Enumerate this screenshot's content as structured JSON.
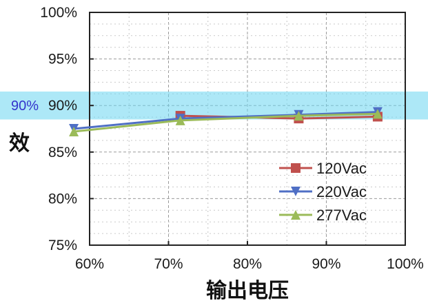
{
  "chart_data": {
    "type": "line",
    "title": "",
    "xlabel": "输出电压",
    "ylabel": "效",
    "x_ticks": [
      "60%",
      "70%",
      "80%",
      "90%",
      "100%"
    ],
    "y_ticks": [
      "75%",
      "80%",
      "85%",
      "90%",
      "95%",
      "100%"
    ],
    "xlim": [
      0.6,
      1.0
    ],
    "ylim": [
      0.75,
      1.0
    ],
    "grid": true,
    "legend_position": "lower-right",
    "highlight_band": {
      "label": "90%",
      "range": [
        0.885,
        0.915
      ],
      "color": "#6ad6f0"
    },
    "series": [
      {
        "name": "120Vac",
        "color": "#c0504d",
        "marker": "square",
        "x": [
          0.715,
          0.865,
          0.965
        ],
        "y": [
          0.889,
          0.886,
          0.888
        ]
      },
      {
        "name": "220Vac",
        "color": "#4f6fc5",
        "marker": "triangle-down",
        "x": [
          0.58,
          0.715,
          0.865,
          0.965
        ],
        "y": [
          0.875,
          0.886,
          0.89,
          0.893
        ]
      },
      {
        "name": "277Vac",
        "color": "#9bbb59",
        "marker": "triangle-up",
        "x": [
          0.58,
          0.715,
          0.865,
          0.965
        ],
        "y": [
          0.872,
          0.884,
          0.889,
          0.891
        ]
      }
    ]
  }
}
